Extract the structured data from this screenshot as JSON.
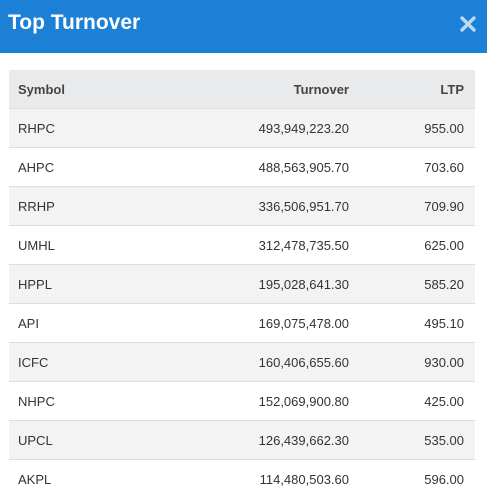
{
  "modal": {
    "title": "Top Turnover",
    "close_icon": "close-icon",
    "accent_color": "#1b80d6"
  },
  "table": {
    "headers": {
      "symbol": "Symbol",
      "turnover": "Turnover",
      "ltp": "LTP"
    },
    "rows": [
      {
        "symbol": "RHPC",
        "turnover": "493,949,223.20",
        "ltp": "955.00"
      },
      {
        "symbol": "AHPC",
        "turnover": "488,563,905.70",
        "ltp": "703.60"
      },
      {
        "symbol": "RRHP",
        "turnover": "336,506,951.70",
        "ltp": "709.90"
      },
      {
        "symbol": "UMHL",
        "turnover": "312,478,735.50",
        "ltp": "625.00"
      },
      {
        "symbol": "HPPL",
        "turnover": "195,028,641.30",
        "ltp": "585.20"
      },
      {
        "symbol": "API",
        "turnover": "169,075,478.00",
        "ltp": "495.10"
      },
      {
        "symbol": "ICFC",
        "turnover": "160,406,655.60",
        "ltp": "930.00"
      },
      {
        "symbol": "NHPC",
        "turnover": "152,069,900.80",
        "ltp": "425.00"
      },
      {
        "symbol": "UPCL",
        "turnover": "126,439,662.30",
        "ltp": "535.00"
      },
      {
        "symbol": "AKPL",
        "turnover": "114,480,503.60",
        "ltp": "596.00"
      }
    ]
  }
}
